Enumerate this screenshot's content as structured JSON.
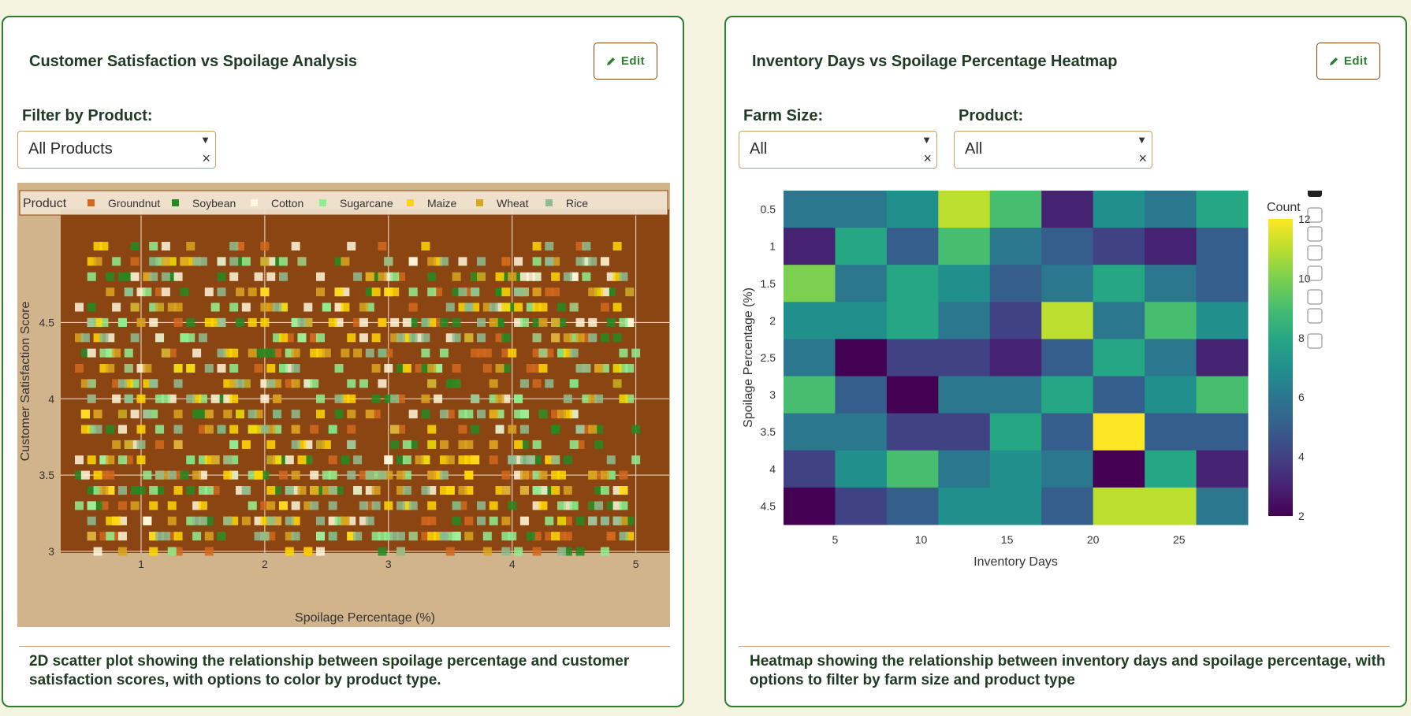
{
  "left_panel": {
    "title": "Customer Satisfaction vs Spoilage Analysis",
    "edit_label": "Edit",
    "filter_label": "Filter by Product:",
    "filter_value": "All Products",
    "description": "2D scatter plot showing the relationship between spoilage percentage and customer satisfaction scores, with options to color by product type."
  },
  "right_panel": {
    "title": "Inventory Days vs Spoilage Percentage Heatmap",
    "edit_label": "Edit",
    "farm_size_label": "Farm Size:",
    "farm_size_value": "All",
    "product_label": "Product:",
    "product_value": "All",
    "description": "Heatmap showing the relationship between inventory days and spoilage percentage, with options to filter by farm size and product type"
  },
  "colors": {
    "plot_bg": "#8b4513",
    "paper_bg": "#d2b48c",
    "accent": "#2e7d32"
  },
  "chart_data": [
    {
      "type": "scatter",
      "xlabel": "Spoilage Percentage (%)",
      "ylabel": "Customer Satisfaction Score",
      "xlim": [
        0.35,
        5.27
      ],
      "ylim": [
        2.99,
        5.24
      ],
      "xticks": [
        1,
        2,
        3,
        4,
        5
      ],
      "yticks": [
        3,
        3.5,
        4,
        4.5
      ],
      "legend_title": "Product",
      "grid": true,
      "series": [
        {
          "name": "Groundnut",
          "color": "#d2691e",
          "count": 150
        },
        {
          "name": "Soybean",
          "color": "#228b22",
          "count": 150
        },
        {
          "name": "Cotton",
          "color": "#fff8dc",
          "count": 150
        },
        {
          "name": "Sugarcane",
          "color": "#90ee90",
          "count": 150
        },
        {
          "name": "Maize",
          "color": "#ffd700",
          "count": 150
        },
        {
          "name": "Wheat",
          "color": "#daa520",
          "count": 150
        },
        {
          "name": "Rice",
          "color": "#8fbc8f",
          "count": 150
        }
      ]
    },
    {
      "type": "heatmap",
      "xlabel": "Inventory Days",
      "ylabel": "Spoilage Percentage (%)",
      "colorbar_title": "Count",
      "colorbar_range": [
        2,
        12
      ],
      "colorbar_ticks": [
        2,
        4,
        6,
        8,
        10,
        12
      ],
      "xrange": [
        2,
        29
      ],
      "x_bin_size": 3,
      "xticks": [
        5,
        10,
        15,
        20,
        25
      ],
      "yticks": [
        0.5,
        1,
        1.5,
        2,
        2.5,
        3,
        3.5,
        4,
        4.5
      ],
      "y_bin_size": 0.5,
      "z": [
        [
          6,
          6,
          7,
          11,
          9,
          3,
          7,
          6,
          8
        ],
        [
          3,
          8,
          5,
          9,
          6,
          5,
          4,
          3,
          5
        ],
        [
          10,
          6,
          8,
          7,
          5,
          6,
          8,
          6,
          5
        ],
        [
          7,
          7,
          8,
          6,
          4,
          11,
          6,
          9,
          7
        ],
        [
          6,
          2,
          4,
          4,
          3,
          5,
          8,
          6,
          3
        ],
        [
          9,
          5,
          2,
          6,
          6,
          8,
          5,
          7,
          9
        ],
        [
          6,
          6,
          4,
          4,
          8,
          5,
          12,
          5,
          5
        ],
        [
          4,
          7,
          9,
          6,
          7,
          6,
          2,
          8,
          3
        ],
        [
          2,
          4,
          5,
          7,
          7,
          5,
          11,
          11,
          6
        ]
      ]
    }
  ]
}
